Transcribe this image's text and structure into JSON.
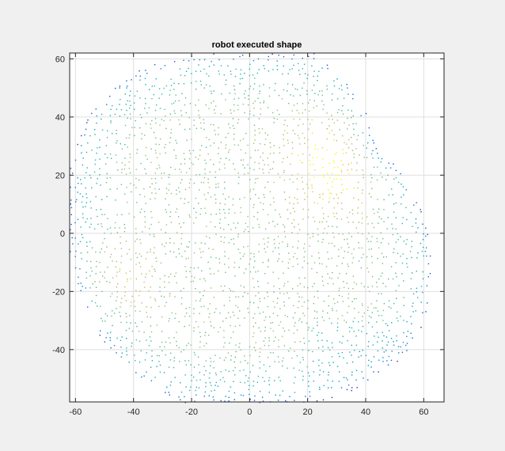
{
  "chart_data": {
    "type": "scatter",
    "title": "robot executed shape",
    "xlabel": "",
    "ylabel": "",
    "xlim": [
      -62,
      67
    ],
    "ylim": [
      -58,
      62
    ],
    "grid": true,
    "colormap": "parula",
    "xticks": [
      -60,
      -40,
      -20,
      0,
      20,
      40,
      60
    ],
    "yticks": [
      -40,
      -20,
      0,
      20,
      40,
      60
    ],
    "xtick_labels": [
      "-60",
      "-40",
      "-20",
      "0",
      "20",
      "40",
      "60"
    ],
    "ytick_labels": [
      "-40",
      "-20",
      "0",
      "20",
      "40",
      "60"
    ],
    "boundary": [
      [
        -5,
        62
      ],
      [
        8,
        62
      ],
      [
        22,
        62
      ],
      [
        33,
        54
      ],
      [
        39,
        45
      ],
      [
        43,
        30
      ],
      [
        53,
        21
      ],
      [
        58,
        11
      ],
      [
        63,
        -5
      ],
      [
        62,
        -25
      ],
      [
        55,
        -42
      ],
      [
        45,
        -48
      ],
      [
        40,
        -52
      ],
      [
        25,
        -58
      ],
      [
        -25,
        -58
      ],
      [
        -45,
        -45
      ],
      [
        -55,
        -30
      ],
      [
        -62,
        -10
      ],
      [
        -62,
        25
      ],
      [
        -55,
        42
      ],
      [
        -45,
        52
      ],
      [
        -35,
        58
      ],
      [
        -20,
        62
      ]
    ],
    "colors": {
      "low": "#352a87",
      "mid": "#0ba8c0",
      "high": "#f9fb0e",
      "background_plot": "#ffffff",
      "figure": "#f0f0f0",
      "grid": "#dfdfdf"
    }
  }
}
